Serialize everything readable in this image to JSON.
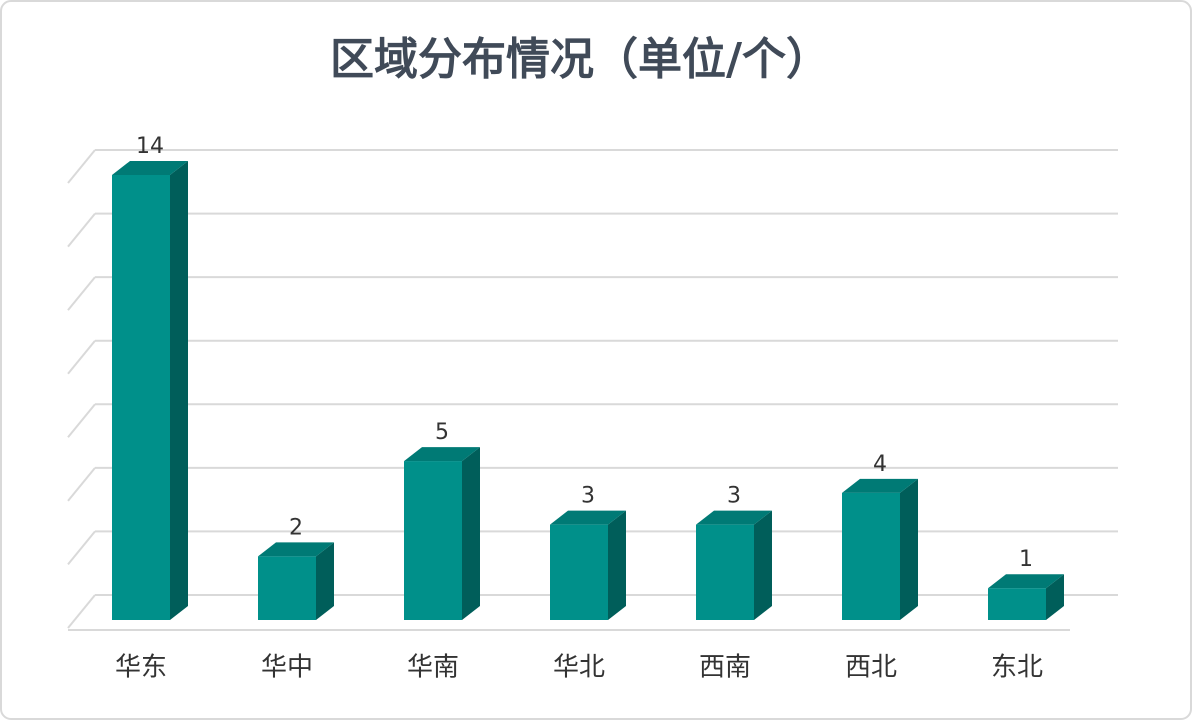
{
  "chart_data": {
    "type": "bar3d",
    "title": "区域分布情况（单位/个）",
    "categories": [
      "华东",
      "华中",
      "华南",
      "华北",
      "西南",
      "西北",
      "东北"
    ],
    "values": [
      14,
      2,
      5,
      3,
      3,
      4,
      1
    ],
    "color": "#00908a",
    "ylim": [
      0,
      14
    ],
    "yticks": [
      0,
      2,
      4,
      6,
      8,
      10,
      12,
      14
    ],
    "grid": true
  }
}
